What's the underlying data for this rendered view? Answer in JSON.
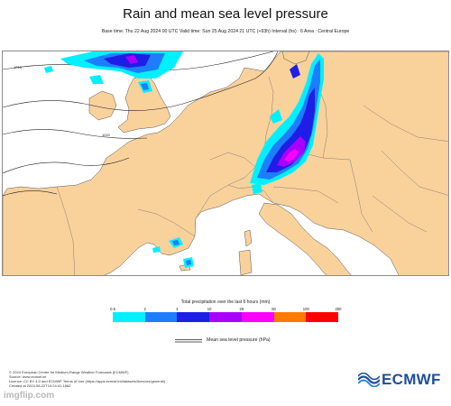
{
  "header": {
    "title": "Rain and mean sea level pressure",
    "subtitle": "Base time: Thu 22 Aug 2024 00 UTC Valid time: Sun 25 Aug 2024 21 UTC (+93h) Interval (hs) : 6 Area : Central Europe"
  },
  "map": {
    "isobar_labels": [
      "1015",
      "1020"
    ],
    "colors": {
      "land": "#f9d19b",
      "sea": "#ffffff",
      "border": "#555555",
      "isobar": "#222222"
    }
  },
  "legend": {
    "title": "Total precipitation over the last 6 hours (mm)",
    "ticks": [
      "0.5",
      "2",
      "4",
      "10",
      "25",
      "50",
      "100",
      "250"
    ],
    "colors": [
      "#00f0ff",
      "#1e7dff",
      "#1e1ee6",
      "#aa00ff",
      "#ff00ff",
      "#ff7a00",
      "#ff0000"
    ],
    "mslp_label": "Mean sea level pressure (hPa)"
  },
  "footer": {
    "lines": [
      "© 2024 European Centre for Medium-Range Weather Forecasts (ECMWF)",
      "Source: www.ecmwf.int",
      "Licence: CC BY 4.0 and ECMWF Terms of Use (https://apps.ecmwf.int/datasets/licences/general/)",
      "Created at 2024-08-22T14:24:41.186Z"
    ],
    "logo_text": "ECMWF",
    "watermark": "imgflip.com"
  }
}
